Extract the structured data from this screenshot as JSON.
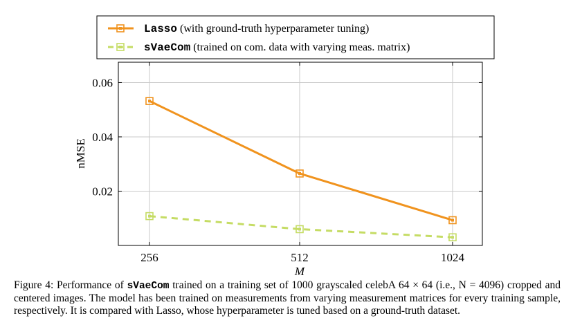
{
  "chart_data": {
    "type": "line",
    "title": "",
    "xlabel": "M",
    "ylabel": "nMSE",
    "x": [
      256,
      512,
      1024
    ],
    "x_tick_labels": [
      "256",
      "512",
      "1024"
    ],
    "y_ticks": [
      0.02,
      0.04,
      0.06
    ],
    "y_tick_labels": [
      "0.02",
      "0.04",
      "0.06"
    ],
    "ylim": [
      0.0,
      0.0675
    ],
    "x_scale": "log2",
    "grid": true,
    "legend_placement": "top",
    "series": [
      {
        "name_mono": "Lasso",
        "name_rest": " (with ground-truth hyperparameter tuning)",
        "values": [
          0.0532,
          0.0265,
          0.0093
        ],
        "color": "#f0931e",
        "style": "solid"
      },
      {
        "name_mono": "sVaeCom",
        "name_rest": " (trained on com. data with varying meas. matrix)",
        "values": [
          0.0108,
          0.006,
          0.003
        ],
        "color": "#c5dc64",
        "style": "dashed"
      }
    ]
  },
  "caption": {
    "prefix": "Figure 4: Performance of ",
    "model": "sVaeCom",
    "text": " trained on a training set of 1000 grayscaled celebA 64 × 64 (i.e., N = 4096) cropped and centered images. The model has been trained on measurements from varying measurement matrices for every training sample, respectively. It is compared with Lasso, whose hyperparameter is tuned based on a ground-truth dataset."
  }
}
